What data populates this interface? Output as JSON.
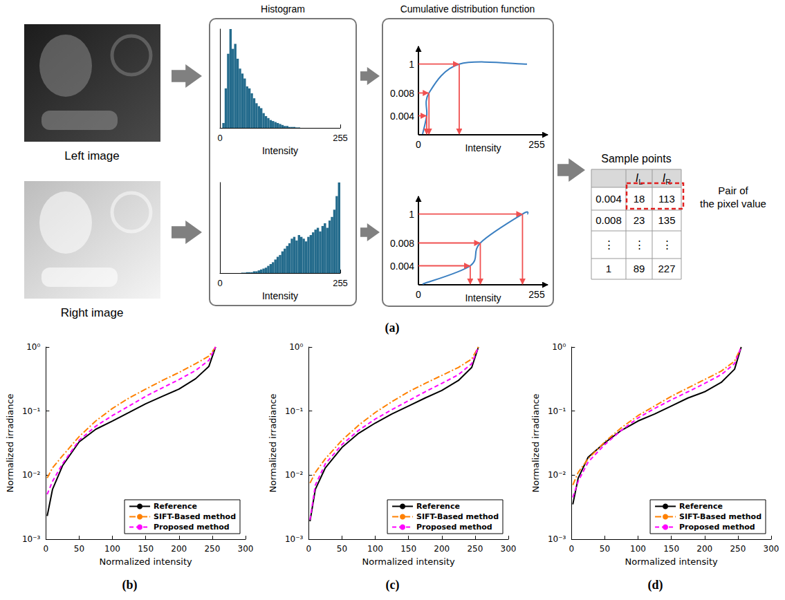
{
  "diagram": {
    "label": "(a)",
    "images": [
      "Left image",
      "Right image"
    ],
    "histogram_title": "Histogram",
    "cdf": {
      "title": "Cumulative distribution function",
      "x_label": "Intensity",
      "xlim": [
        0,
        255
      ]
    },
    "table": {
      "title": "Sample points",
      "columns": [
        {
          "text": "I",
          "sub": "L"
        },
        {
          "text": "I",
          "sub": "R"
        }
      ],
      "rows": [
        [
          0.004,
          18,
          113
        ],
        [
          0.008,
          23,
          135
        ],
        [
          "⋮",
          "⋮",
          "⋮"
        ],
        [
          1,
          89,
          227
        ]
      ],
      "pair_note": {
        "p": 0.004,
        "lines": [
          "Pair of",
          "the pixel value"
        ]
      }
    }
  },
  "chart_data": [
    {
      "type": "histogram",
      "color": "#246b8c",
      "x_label": "Intensity",
      "bins": [
        0,
        5,
        10,
        15,
        20,
        25,
        30,
        35,
        40,
        45,
        50,
        55,
        60,
        65,
        70,
        75,
        80,
        85,
        90,
        95,
        100,
        105,
        110,
        115,
        120,
        125,
        130,
        135,
        140,
        145,
        150,
        155,
        160,
        165,
        170,
        175,
        180,
        185,
        190,
        195,
        200,
        205,
        210,
        215,
        220,
        225,
        230,
        235,
        240,
        245,
        250,
        255
      ],
      "values": [
        0,
        5,
        40,
        75,
        100,
        80,
        85,
        70,
        60,
        55,
        50,
        42,
        40,
        35,
        30,
        25,
        22,
        20,
        15,
        12,
        10,
        8,
        7,
        6,
        5,
        4,
        3,
        2,
        2,
        1,
        1,
        1,
        0.5,
        0.5,
        0,
        0,
        0,
        0,
        0,
        0,
        0,
        0,
        0,
        0,
        0,
        0,
        0,
        0,
        0,
        0,
        0
      ],
      "xlim": [
        0,
        255
      ],
      "xticks": [
        0,
        255
      ],
      "ylim": [
        0,
        100
      ],
      "tick_labels": "x",
      "grid": false
    },
    {
      "type": "histogram",
      "color": "#246b8c",
      "x_label": "Intensity",
      "bins": [
        0,
        5,
        10,
        15,
        20,
        25,
        30,
        35,
        40,
        45,
        50,
        55,
        60,
        65,
        70,
        75,
        80,
        85,
        90,
        95,
        100,
        105,
        110,
        115,
        120,
        125,
        130,
        135,
        140,
        145,
        150,
        155,
        160,
        165,
        170,
        175,
        180,
        185,
        190,
        195,
        200,
        205,
        210,
        215,
        220,
        225,
        230,
        235,
        240,
        245,
        250,
        255
      ],
      "values": [
        0,
        0,
        0,
        0,
        0,
        0,
        0,
        0,
        0,
        0.5,
        0.5,
        1,
        1,
        1,
        2,
        2,
        3,
        4,
        5,
        6,
        8,
        10,
        12,
        15,
        18,
        20,
        24,
        27,
        30,
        33,
        38,
        40,
        36,
        42,
        40,
        38,
        35,
        40,
        42,
        45,
        48,
        50,
        46,
        52,
        55,
        50,
        58,
        62,
        70,
        85,
        100
      ],
      "xlim": [
        0,
        255
      ],
      "xticks": [
        0,
        255
      ],
      "ylim": [
        0,
        100
      ],
      "tick_labels": "x",
      "grid": false
    },
    {
      "type": "line",
      "title": "(b)",
      "x_label": "Normalized intensity",
      "y_label": "Normalized irradiance",
      "x": [
        2,
        10,
        25,
        50,
        75,
        100,
        125,
        150,
        175,
        200,
        225,
        245,
        255
      ],
      "series": [
        {
          "name": "Reference",
          "color": "#000000",
          "line_style": "solid",
          "values": [
            0.0023,
            0.006,
            0.014,
            0.033,
            0.052,
            0.07,
            0.095,
            0.13,
            0.17,
            0.22,
            0.32,
            0.5,
            1
          ]
        },
        {
          "name": "SIFT-Based method",
          "color": "#ff8000",
          "line_style": "dashdot",
          "values": [
            0.009,
            0.013,
            0.02,
            0.04,
            0.07,
            0.11,
            0.16,
            0.22,
            0.3,
            0.4,
            0.55,
            0.72,
            1
          ]
        },
        {
          "name": "Proposed method",
          "color": "#ff00ff",
          "line_style": "dashed",
          "values": [
            0.005,
            0.008,
            0.015,
            0.035,
            0.058,
            0.085,
            0.12,
            0.17,
            0.23,
            0.31,
            0.43,
            0.62,
            1
          ]
        }
      ],
      "xlim": [
        0,
        300
      ],
      "xticks": [
        0,
        50,
        100,
        150,
        200,
        250,
        300
      ],
      "ylim": [
        0.001,
        1
      ],
      "yticks": [
        {
          "value": 0.001,
          "label": "10⁻³"
        },
        {
          "value": 0.01,
          "label": "10⁻²"
        },
        {
          "value": 0.1,
          "label": "10⁻¹"
        },
        {
          "value": 1,
          "label": "10⁰"
        }
      ],
      "log": "y",
      "grid": false,
      "legend": "lower right"
    },
    {
      "type": "line",
      "title": "(c)",
      "x_label": "Normalized intensity",
      "y_label": "Normalized irradiance",
      "x": [
        2,
        10,
        25,
        50,
        75,
        100,
        125,
        150,
        175,
        200,
        225,
        245,
        255
      ],
      "series": [
        {
          "name": "Reference",
          "color": "#000000",
          "line_style": "solid",
          "values": [
            0.0019,
            0.006,
            0.013,
            0.027,
            0.045,
            0.065,
            0.09,
            0.12,
            0.16,
            0.21,
            0.3,
            0.48,
            1
          ]
        },
        {
          "name": "SIFT-Based method",
          "color": "#ff8000",
          "line_style": "dashdot",
          "values": [
            0.0075,
            0.011,
            0.018,
            0.035,
            0.06,
            0.095,
            0.14,
            0.2,
            0.27,
            0.36,
            0.48,
            0.65,
            1
          ]
        },
        {
          "name": "Proposed method",
          "color": "#ff00ff",
          "line_style": "dashed",
          "values": [
            0.002,
            0.007,
            0.015,
            0.03,
            0.05,
            0.075,
            0.105,
            0.145,
            0.2,
            0.27,
            0.37,
            0.55,
            1
          ]
        }
      ],
      "xlim": [
        0,
        300
      ],
      "xticks": [
        0,
        50,
        100,
        150,
        200,
        250,
        300
      ],
      "ylim": [
        0.001,
        1
      ],
      "yticks": [
        {
          "value": 0.001,
          "label": "10⁻³"
        },
        {
          "value": 0.01,
          "label": "10⁻²"
        },
        {
          "value": 0.1,
          "label": "10⁻¹"
        },
        {
          "value": 1,
          "label": "10⁰"
        }
      ],
      "log": "y",
      "grid": false,
      "legend": "lower right"
    },
    {
      "type": "line",
      "title": "(d)",
      "x_label": "Normalized intensity",
      "y_label": "Normalized irradiance",
      "x": [
        2,
        10,
        25,
        50,
        75,
        100,
        125,
        150,
        175,
        200,
        225,
        245,
        255
      ],
      "series": [
        {
          "name": "Reference",
          "color": "#000000",
          "line_style": "solid",
          "values": [
            0.0035,
            0.009,
            0.019,
            0.032,
            0.05,
            0.07,
            0.09,
            0.12,
            0.16,
            0.2,
            0.28,
            0.45,
            1
          ]
        },
        {
          "name": "SIFT-Based method",
          "color": "#ff8000",
          "line_style": "dashdot",
          "values": [
            0.007,
            0.011,
            0.018,
            0.033,
            0.055,
            0.085,
            0.12,
            0.17,
            0.23,
            0.31,
            0.42,
            0.6,
            1
          ]
        },
        {
          "name": "Proposed method",
          "color": "#ff00ff",
          "line_style": "dashed",
          "values": [
            0.0045,
            0.008,
            0.016,
            0.03,
            0.05,
            0.078,
            0.11,
            0.15,
            0.2,
            0.27,
            0.37,
            0.55,
            1
          ]
        }
      ],
      "xlim": [
        0,
        300
      ],
      "xticks": [
        0,
        50,
        100,
        150,
        200,
        250,
        300
      ],
      "ylim": [
        0.001,
        1
      ],
      "yticks": [
        {
          "value": 0.001,
          "label": "10⁻³"
        },
        {
          "value": 0.01,
          "label": "10⁻²"
        },
        {
          "value": 0.1,
          "label": "10⁻¹"
        },
        {
          "value": 1,
          "label": "10⁰"
        }
      ],
      "log": "y",
      "grid": false,
      "legend": "lower right"
    }
  ]
}
